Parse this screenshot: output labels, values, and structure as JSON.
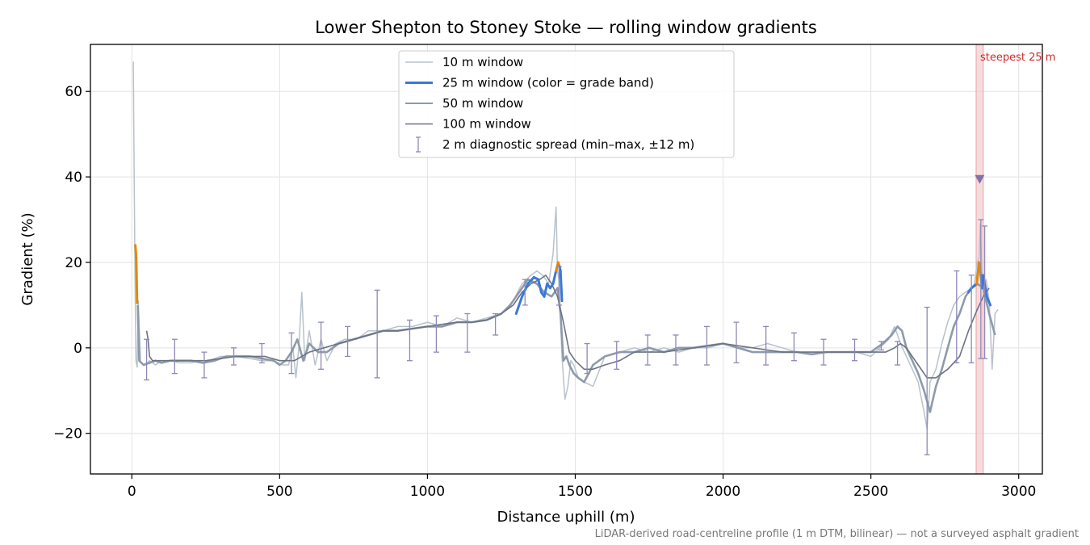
{
  "chart_data": {
    "type": "line",
    "title": "Lower Shepton to Stoney Stoke — rolling window gradients",
    "xlabel": "Distance uphill (m)",
    "ylabel": "Gradient (%)",
    "xlim": [
      -140,
      3080
    ],
    "ylim": [
      -29.5,
      71
    ],
    "xticks": [
      0,
      500,
      1000,
      1500,
      2000,
      2500,
      3000
    ],
    "yticks": [
      -20,
      0,
      20,
      40,
      60
    ],
    "xtick_labels": [
      "0",
      "500",
      "1000",
      "1500",
      "2000",
      "2500",
      "3000"
    ],
    "ytick_labels": [
      "−20",
      "0",
      "20",
      "40",
      "60"
    ],
    "grid": true,
    "legend_position": "upper center",
    "colors": {
      "w10": "#b8c2cc",
      "w25": "#3a78d8",
      "w25_steep": "#e08a00",
      "w50": "#8e9aab",
      "w100": "#6b7282",
      "errbar": "#8f88b5",
      "highlight": "#f2c4c8",
      "marker": "#8270a8",
      "annot": "#d62728"
    },
    "series": [
      {
        "name": "10 m window",
        "x": [
          5,
          8,
          11,
          14,
          18,
          22,
          30,
          45,
          60,
          80,
          100,
          130,
          160,
          200,
          230,
          260,
          300,
          350,
          400,
          440,
          480,
          510,
          530,
          545,
          555,
          565,
          575,
          585,
          600,
          620,
          640,
          660,
          690,
          720,
          760,
          800,
          850,
          900,
          950,
          1000,
          1050,
          1100,
          1150,
          1200,
          1250,
          1290,
          1320,
          1350,
          1370,
          1390,
          1410,
          1425,
          1435,
          1440,
          1445,
          1455,
          1465,
          1475,
          1485,
          1495,
          1510,
          1530,
          1560,
          1600,
          1650,
          1700,
          1750,
          1800,
          1850,
          1900,
          1950,
          2000,
          2050,
          2100,
          2150,
          2200,
          2250,
          2300,
          2350,
          2400,
          2450,
          2500,
          2530,
          2560,
          2580,
          2600,
          2620,
          2640,
          2660,
          2680,
          2690,
          2700,
          2720,
          2740,
          2760,
          2780,
          2800,
          2820,
          2840,
          2850,
          2860,
          2866,
          2870,
          2875,
          2880,
          2890,
          2900,
          2910,
          2920,
          2930
        ],
        "y": [
          67,
          40,
          15,
          -3,
          -4.5,
          11,
          -3.5,
          -4,
          -3,
          -4,
          -3,
          -3,
          -3.5,
          -3.5,
          -3,
          -3,
          -2,
          -2,
          -2.5,
          -3,
          -3,
          -4,
          -4,
          0,
          -7,
          0,
          13,
          -3,
          4,
          -4,
          2,
          -3,
          1,
          2,
          2,
          4,
          4,
          5,
          5,
          6,
          5,
          7,
          6,
          7,
          8,
          11,
          15,
          17,
          18,
          17,
          15,
          22,
          33,
          18,
          16,
          -2,
          -12,
          -9,
          -3,
          -4,
          -7,
          -8,
          -9,
          -2,
          -1,
          0,
          -1,
          0,
          -1,
          0,
          0,
          1,
          0,
          0,
          1,
          0,
          -1,
          -1,
          -1,
          -1,
          -1,
          -2,
          0,
          2,
          5,
          1,
          -2,
          -5,
          -8,
          -15,
          -19,
          -8,
          -5,
          1,
          6,
          10,
          12,
          13,
          14,
          15,
          20,
          21,
          29,
          18,
          14,
          16,
          11,
          -5,
          8,
          9
        ]
      },
      {
        "name": "25 m window (color = grade band)",
        "x": [
          12,
          15,
          18,
          1300,
          1320,
          1340,
          1360,
          1375,
          1385,
          1395,
          1405,
          1415,
          1425,
          1435,
          1442,
          1447,
          1450,
          1455,
          2830,
          2840,
          2850,
          2858,
          2866,
          2872,
          2876,
          2880,
          2886,
          2892,
          2898,
          2904
        ],
        "y": [
          24,
          21,
          10.5,
          8,
          12,
          15,
          16.5,
          16,
          13,
          12,
          15,
          14,
          15,
          18,
          20,
          19,
          18,
          11,
          13,
          14,
          14.5,
          15,
          20,
          17,
          14,
          17,
          14.5,
          12,
          11,
          10
        ]
      },
      {
        "name": "50 m window",
        "x": [
          20,
          25,
          40,
          60,
          80,
          100,
          130,
          160,
          200,
          240,
          280,
          320,
          360,
          400,
          440,
          480,
          500,
          520,
          540,
          560,
          580,
          600,
          630,
          660,
          700,
          750,
          800,
          850,
          900,
          950,
          1000,
          1050,
          1100,
          1150,
          1200,
          1250,
          1280,
          1310,
          1340,
          1370,
          1395,
          1420,
          1440,
          1450,
          1460,
          1470,
          1480,
          1495,
          1510,
          1530,
          1560,
          1600,
          1650,
          1700,
          1750,
          1800,
          1850,
          1900,
          1950,
          2000,
          2050,
          2100,
          2150,
          2200,
          2250,
          2300,
          2350,
          2400,
          2450,
          2500,
          2540,
          2570,
          2590,
          2605,
          2620,
          2640,
          2660,
          2680,
          2700,
          2720,
          2740,
          2760,
          2780,
          2800,
          2820,
          2840,
          2860,
          2880,
          2900,
          2920
        ],
        "y": [
          10,
          -3,
          -4,
          -3.5,
          -3,
          -3.5,
          -3,
          -3,
          -3,
          -3.5,
          -3,
          -2,
          -2,
          -2,
          -2.5,
          -3,
          -4,
          -3,
          -1,
          2,
          -3,
          1,
          -1,
          -1,
          1,
          2,
          3,
          4,
          4,
          4.5,
          5,
          5,
          6,
          6,
          6.5,
          8,
          10,
          13,
          16,
          15,
          13,
          12,
          14,
          8,
          -3,
          -2,
          -4,
          -6,
          -7,
          -8,
          -4,
          -2,
          -1,
          -1,
          0,
          -1,
          0,
          0,
          0.5,
          1,
          0,
          -1,
          -1,
          -1,
          -1,
          -1.5,
          -1,
          -1,
          -1,
          -1,
          1,
          3,
          5,
          4,
          0,
          -3,
          -6,
          -10,
          -15,
          -9,
          -5,
          0,
          5,
          8,
          12,
          14,
          15,
          14,
          8,
          3
        ]
      },
      {
        "name": "100 m window",
        "x": [
          50,
          55,
          60,
          70,
          100,
          150,
          200,
          250,
          300,
          350,
          400,
          450,
          500,
          550,
          600,
          650,
          700,
          750,
          800,
          850,
          900,
          950,
          1000,
          1050,
          1100,
          1150,
          1200,
          1250,
          1290,
          1320,
          1350,
          1380,
          1400,
          1420,
          1440,
          1460,
          1480,
          1500,
          1530,
          1560,
          1600,
          1650,
          1700,
          1750,
          1800,
          1850,
          1900,
          1950,
          2000,
          2050,
          2100,
          2150,
          2200,
          2250,
          2300,
          2350,
          2400,
          2450,
          2500,
          2550,
          2580,
          2600,
          2620,
          2640,
          2660,
          2690,
          2720,
          2760,
          2800,
          2830,
          2860,
          2880,
          2900
        ],
        "y": [
          4,
          2,
          -2,
          -3,
          -3,
          -3,
          -3,
          -3,
          -2.5,
          -2,
          -2,
          -2,
          -3,
          -3,
          -1,
          0,
          1,
          2,
          3,
          4,
          4,
          4.5,
          5,
          5.5,
          6,
          6,
          6.5,
          8,
          10,
          13,
          15,
          16,
          17,
          15,
          12,
          6,
          -1,
          -3,
          -5,
          -5,
          -4,
          -3,
          -1,
          -1,
          -1,
          -0.5,
          0,
          0.5,
          1,
          0.5,
          0,
          -0.5,
          -1,
          -1,
          -1,
          -1,
          -1,
          -1,
          -1,
          -1,
          0,
          1,
          0,
          -2,
          -4,
          -7,
          -7,
          -5,
          -2,
          4,
          9,
          12,
          14
        ]
      }
    ],
    "error_bars": {
      "label": "2 m diagnostic spread (min–max, ±12 m)",
      "x": [
        50,
        145,
        245,
        345,
        440,
        540,
        640,
        730,
        830,
        940,
        1030,
        1135,
        1230,
        1330,
        1445,
        1540,
        1640,
        1745,
        1840,
        1945,
        2045,
        2145,
        2240,
        2340,
        2445,
        2535,
        2590,
        2690,
        2790,
        2840,
        2872,
        2885
      ],
      "lo": [
        -7.5,
        -6,
        -7,
        -4,
        -3.5,
        -6,
        -5,
        -2,
        -7,
        -3,
        -1,
        -1,
        3,
        10,
        10,
        -6,
        -5,
        -4,
        -4,
        -4,
        -3.5,
        -4,
        -3,
        -4,
        -3,
        -0.5,
        -4,
        -25,
        -3.5,
        -3.5,
        -2.5,
        -2.5
      ],
      "hi": [
        2,
        2,
        -1,
        0,
        1,
        3.5,
        6,
        5,
        13.5,
        6.5,
        7.5,
        8,
        8,
        16,
        19,
        1,
        1.5,
        3,
        3,
        5,
        6,
        5,
        3.5,
        2,
        2,
        1.5,
        1.5,
        9.5,
        18,
        17,
        30,
        28.5
      ]
    },
    "steepest_25m": {
      "label": "steepest 25 m",
      "x_start": 2856,
      "x_end": 2880,
      "marker_x": 2868,
      "marker_y": 39.5
    }
  },
  "footnote": "LiDAR-derived road-centreline profile (1 m DTM, bilinear) — not a surveyed asphalt gradient"
}
